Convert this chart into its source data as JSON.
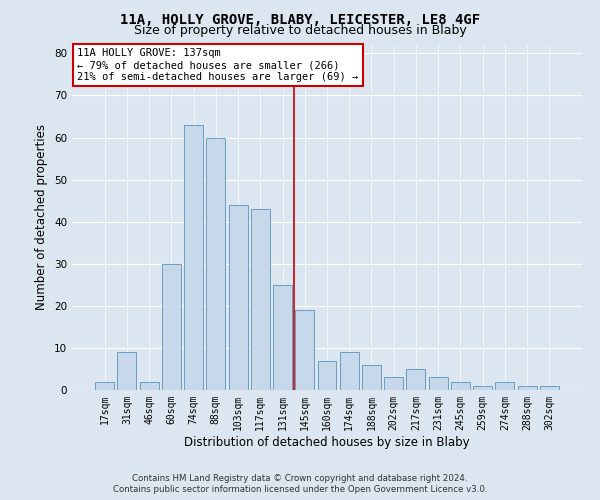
{
  "title": "11A, HOLLY GROVE, BLABY, LEICESTER, LE8 4GF",
  "subtitle": "Size of property relative to detached houses in Blaby",
  "xlabel": "Distribution of detached houses by size in Blaby",
  "ylabel": "Number of detached properties",
  "categories": [
    "17sqm",
    "31sqm",
    "46sqm",
    "60sqm",
    "74sqm",
    "88sqm",
    "103sqm",
    "117sqm",
    "131sqm",
    "145sqm",
    "160sqm",
    "174sqm",
    "188sqm",
    "202sqm",
    "217sqm",
    "231sqm",
    "245sqm",
    "259sqm",
    "274sqm",
    "288sqm",
    "302sqm"
  ],
  "values": [
    2,
    9,
    2,
    30,
    63,
    60,
    44,
    43,
    25,
    19,
    7,
    9,
    6,
    3,
    5,
    3,
    2,
    1,
    2,
    1,
    1
  ],
  "bar_color": "#c8d8eb",
  "bar_edge_color": "#6a9ec0",
  "vline_x_index": 8.5,
  "vline_color": "#cc0000",
  "annotation_text": "11A HOLLY GROVE: 137sqm\n← 79% of detached houses are smaller (266)\n21% of semi-detached houses are larger (69) →",
  "annotation_box_color": "#ffffff",
  "annotation_box_edge_color": "#cc0000",
  "ylim": [
    0,
    82
  ],
  "yticks": [
    0,
    10,
    20,
    30,
    40,
    50,
    60,
    70,
    80
  ],
  "background_color": "#dce6f0",
  "plot_background_color": "#dce6f0",
  "footer_line1": "Contains HM Land Registry data © Crown copyright and database right 2024.",
  "footer_line2": "Contains public sector information licensed under the Open Government Licence v3.0.",
  "title_fontsize": 10,
  "subtitle_fontsize": 9,
  "tick_fontsize": 7,
  "ylabel_fontsize": 8.5,
  "xlabel_fontsize": 8.5,
  "annotation_fontsize": 7.5
}
